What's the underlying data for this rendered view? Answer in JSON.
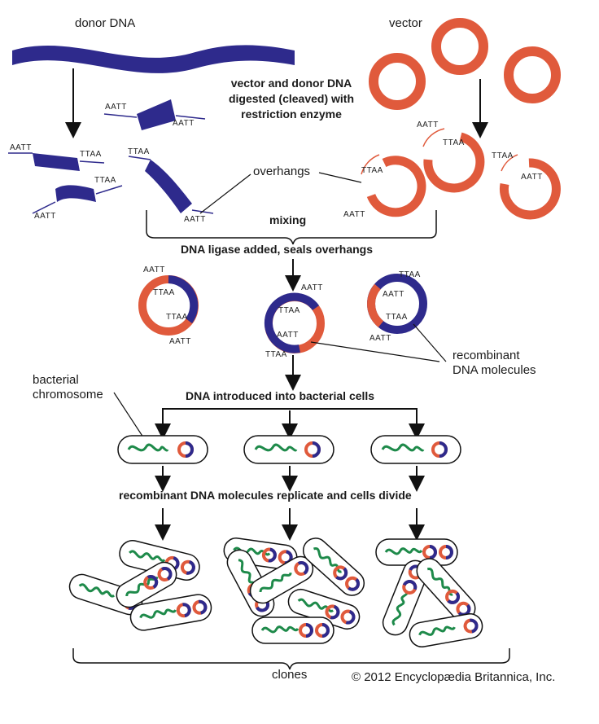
{
  "labels": {
    "donor_dna": "donor DNA",
    "vector": "vector",
    "digest_line1": "vector and donor DNA",
    "digest_line2": "digested (cleaved) with",
    "digest_line3": "restriction enzyme",
    "overhangs": "overhangs",
    "mixing": "mixing",
    "ligase": "DNA ligase added, seals overhangs",
    "recombinant_line1": "recombinant",
    "recombinant_line2": "DNA molecules",
    "bacterial_line1": "bacterial",
    "bacterial_line2": "chromosome",
    "introduced": "DNA introduced into bacterial cells",
    "replicate": "recombinant DNA molecules replicate and cells divide",
    "clones": "clones",
    "copyright": "© 2012 Encyclopædia Britannica, Inc."
  },
  "sticky_ends": {
    "aatt": "AATT",
    "ttaa": "TTAA"
  },
  "colors": {
    "donor": "#2e2a8c",
    "vector": "#e05a3c",
    "chromosome": "#1e8a4a",
    "outline": "#111111"
  }
}
